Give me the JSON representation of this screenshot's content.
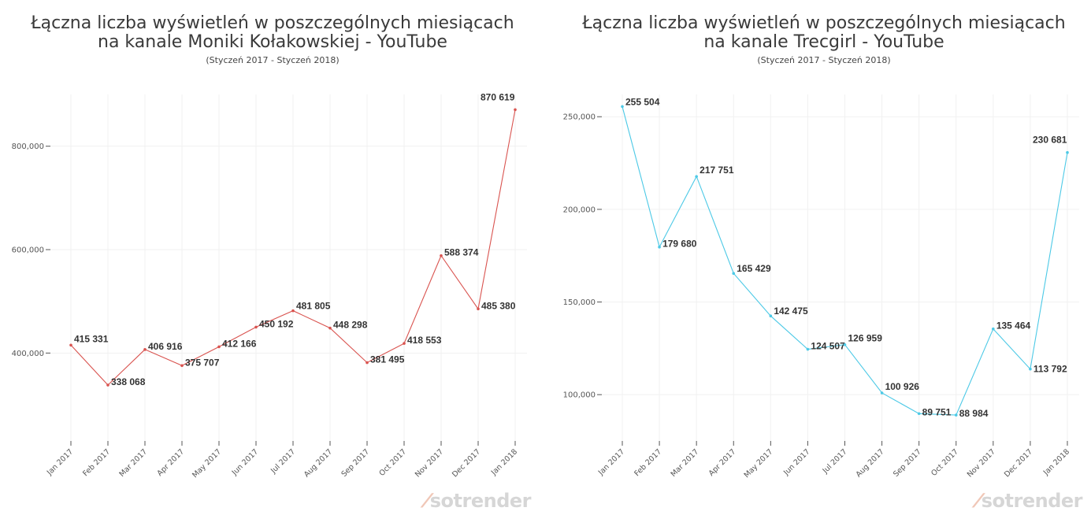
{
  "chart_data": [
    {
      "type": "line",
      "title": "Łączna liczba wyświetleń w poszczególnych miesiącach na kanale Moniki Kołakowskiej - YouTube",
      "title_lines": [
        "Łączna liczba wyświetleń w poszczególnych miesiącach",
        "na kanale Moniki Kołakowskiej - YouTube"
      ],
      "subtitle": "(Styczeń 2017 - Styczeń 2018)",
      "categories": [
        "Jan 2017",
        "Feb 2017",
        "Mar 2017",
        "Apr 2017",
        "May 2017",
        "Jun 2017",
        "Jul 2017",
        "Aug 2017",
        "Sep 2017",
        "Oct 2017",
        "Nov 2017",
        "Dec 2017",
        "Jan 2018"
      ],
      "values": [
        415331,
        338068,
        406916,
        375707,
        412166,
        450192,
        481805,
        448298,
        381495,
        418553,
        588374,
        485380,
        870619
      ],
      "data_labels": [
        "415 331",
        "338 068",
        "406 916",
        "375 707",
        "412 166",
        "450 192",
        "481 805",
        "448 298",
        "381 495",
        "418 553",
        "588 374",
        "485 380",
        "870 619"
      ],
      "yticks": [
        400000,
        600000,
        800000
      ],
      "ytick_labels": [
        "400,000",
        "600,000",
        "800,000"
      ],
      "ylim": [
        230000,
        900000
      ],
      "grid": true,
      "color": "#d9534f",
      "logo": "sotrender"
    },
    {
      "type": "line",
      "title": "Łączna liczba wyświetleń w poszczególnych miesiącach na kanale Trecgirl - YouTube",
      "title_lines": [
        "Łączna liczba wyświetleń w poszczególnych miesiącach",
        "na kanale Trecgirl - YouTube"
      ],
      "subtitle": "(Styczeń 2017 - Styczeń 2018)",
      "categories": [
        "Jan 2017",
        "Feb 2017",
        "Mar 2017",
        "Apr 2017",
        "May 2017",
        "Jun 2017",
        "Jul 2017",
        "Aug 2017",
        "Sep 2017",
        "Oct 2017",
        "Nov 2017",
        "Dec 2017",
        "Jan 2018"
      ],
      "values": [
        255504,
        179680,
        217751,
        165429,
        142475,
        124507,
        126959,
        100926,
        89751,
        88984,
        135464,
        113792,
        230681
      ],
      "data_labels": [
        "255 504",
        "179 680",
        "217 751",
        "165 429",
        "142 475",
        "124 507",
        "126 959",
        "100 926",
        "89 751",
        "88 984",
        "135 464",
        "113 792",
        "230 681"
      ],
      "yticks": [
        100000,
        150000,
        200000,
        250000
      ],
      "ytick_labels": [
        "100,000",
        "150,000",
        "200,000",
        "250,000"
      ],
      "ylim": [
        75000,
        262000
      ],
      "grid": true,
      "color": "#4cc9e6",
      "logo": "sotrender"
    }
  ]
}
